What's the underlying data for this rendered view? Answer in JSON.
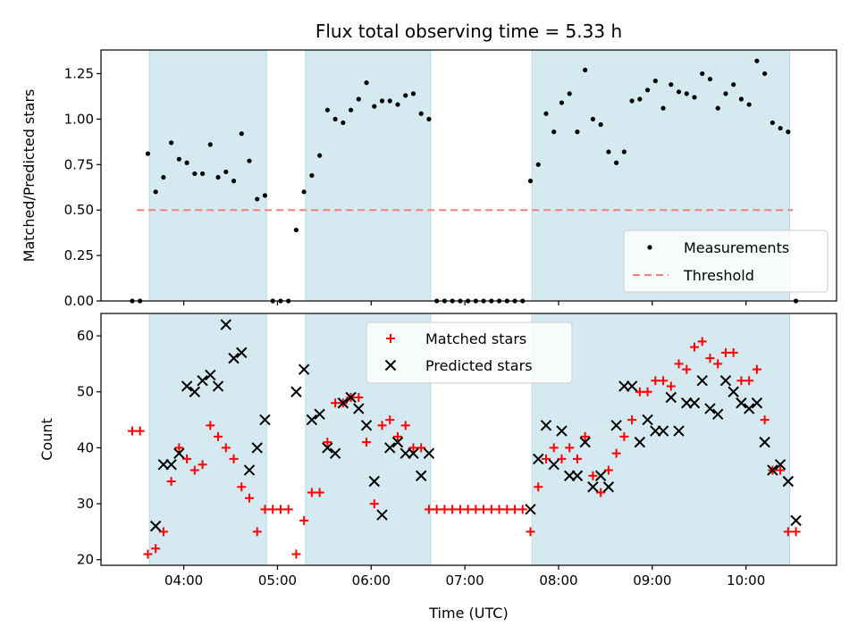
{
  "chart_data": [
    {
      "type": "scatter",
      "title": "Flux total observing time = 5.33 h",
      "ylabel": "Matched/Predicted stars",
      "xlabel": "",
      "ylim": [
        0,
        1.38
      ],
      "yticks": [
        "0.00",
        "0.25",
        "0.50",
        "0.75",
        "1.00",
        "1.25"
      ],
      "threshold": {
        "name": "Threshold",
        "value": 0.5,
        "x_range": [
          "03:30",
          "10:30"
        ],
        "color": "#f08080"
      },
      "shaded_intervals": [
        [
          "03:38",
          "04:53"
        ],
        [
          "05:18",
          "06:38"
        ],
        [
          "07:43",
          "10:28"
        ]
      ],
      "legend": {
        "placement": "lower-right",
        "entries": [
          "Measurements",
          "Threshold"
        ]
      },
      "series": [
        {
          "name": "Measurements",
          "color": "#000000",
          "marker": "dot",
          "x": [
            "03:27",
            "03:32",
            "03:37",
            "03:42",
            "03:47",
            "03:52",
            "03:57",
            "04:02",
            "04:07",
            "04:12",
            "04:17",
            "04:22",
            "04:27",
            "04:32",
            "04:37",
            "04:42",
            "04:47",
            "04:52",
            "04:57",
            "05:02",
            "05:07",
            "05:12",
            "05:17",
            "05:22",
            "05:27",
            "05:32",
            "05:37",
            "05:42",
            "05:47",
            "05:52",
            "05:57",
            "06:02",
            "06:07",
            "06:12",
            "06:17",
            "06:22",
            "06:27",
            "06:32",
            "06:37",
            "06:42",
            "06:47",
            "06:52",
            "06:57",
            "07:02",
            "07:07",
            "07:12",
            "07:17",
            "07:22",
            "07:27",
            "07:32",
            "07:37",
            "07:42",
            "07:47",
            "07:52",
            "07:57",
            "08:02",
            "08:07",
            "08:12",
            "08:17",
            "08:22",
            "08:27",
            "08:32",
            "08:37",
            "08:42",
            "08:47",
            "08:52",
            "08:57",
            "09:02",
            "09:07",
            "09:12",
            "09:17",
            "09:22",
            "09:27",
            "09:32",
            "09:37",
            "09:42",
            "09:47",
            "09:52",
            "09:57",
            "10:02",
            "10:07",
            "10:12",
            "10:17",
            "10:22",
            "10:27",
            "10:32"
          ],
          "y": [
            0,
            0,
            0.81,
            0.6,
            0.68,
            0.87,
            0.78,
            0.76,
            0.7,
            0.7,
            0.86,
            0.68,
            0.71,
            0.66,
            0.92,
            0.77,
            0.56,
            0.58,
            0,
            0,
            0,
            0.39,
            0.6,
            0.69,
            0.8,
            1.05,
            1.0,
            0.98,
            1.05,
            1.11,
            1.2,
            1.07,
            1.1,
            1.1,
            1.08,
            1.13,
            1.14,
            1.03,
            1.0,
            0,
            0,
            0,
            0,
            0,
            0,
            0,
            0,
            0,
            0,
            0,
            0,
            0.66,
            0.75,
            1.03,
            0.93,
            1.09,
            1.14,
            0.93,
            1.27,
            1.0,
            0.97,
            0.82,
            0.76,
            0.82,
            1.1,
            1.11,
            1.16,
            1.21,
            1.06,
            1.19,
            1.15,
            1.14,
            1.12,
            1.25,
            1.22,
            1.06,
            1.14,
            1.19,
            1.11,
            1.08,
            1.32,
            1.25,
            0.98,
            0.95,
            0.93,
            0
          ]
        }
      ]
    },
    {
      "type": "scatter",
      "title": "",
      "xlabel": "Time (UTC)",
      "ylabel": "Count",
      "ylim": [
        19,
        64
      ],
      "yticks": [
        "20",
        "30",
        "40",
        "50",
        "60"
      ],
      "xticks": [
        "04:00",
        "05:00",
        "06:00",
        "07:00",
        "08:00",
        "09:00",
        "10:00"
      ],
      "xlim": [
        "03:07",
        "10:58"
      ],
      "shaded_intervals": [
        [
          "03:38",
          "04:53"
        ],
        [
          "05:18",
          "06:38"
        ],
        [
          "07:43",
          "10:28"
        ]
      ],
      "legend": {
        "placement": "top-center",
        "entries": [
          "Matched stars",
          "Predicted stars"
        ]
      },
      "series": [
        {
          "name": "Matched stars",
          "color": "#ff0000",
          "marker": "plus",
          "x": [
            "03:27",
            "03:32",
            "03:37",
            "03:42",
            "03:47",
            "03:52",
            "03:57",
            "04:02",
            "04:07",
            "04:12",
            "04:17",
            "04:22",
            "04:27",
            "04:32",
            "04:37",
            "04:42",
            "04:47",
            "04:52",
            "04:57",
            "05:02",
            "05:07",
            "05:12",
            "05:17",
            "05:22",
            "05:27",
            "05:32",
            "05:37",
            "05:42",
            "05:47",
            "05:52",
            "05:57",
            "06:02",
            "06:07",
            "06:12",
            "06:17",
            "06:22",
            "06:27",
            "06:32",
            "06:37",
            "06:42",
            "06:47",
            "06:52",
            "06:57",
            "07:02",
            "07:07",
            "07:12",
            "07:17",
            "07:22",
            "07:27",
            "07:32",
            "07:37",
            "07:42",
            "07:47",
            "07:52",
            "07:57",
            "08:02",
            "08:07",
            "08:12",
            "08:17",
            "08:22",
            "08:27",
            "08:32",
            "08:37",
            "08:42",
            "08:47",
            "08:52",
            "08:57",
            "09:02",
            "09:07",
            "09:12",
            "09:17",
            "09:22",
            "09:27",
            "09:32",
            "09:37",
            "09:42",
            "09:47",
            "09:52",
            "09:57",
            "10:02",
            "10:07",
            "10:12",
            "10:17",
            "10:22",
            "10:27",
            "10:32"
          ],
          "y": [
            43,
            43,
            21,
            22,
            25,
            34,
            40,
            38,
            36,
            37,
            44,
            42,
            40,
            38,
            33,
            31,
            25,
            29,
            29,
            29,
            29,
            21,
            27,
            32,
            32,
            41,
            48,
            48,
            49,
            49,
            41,
            30,
            44,
            45,
            42,
            44,
            40,
            40,
            29,
            29,
            29,
            29,
            29,
            29,
            29,
            29,
            29,
            29,
            29,
            29,
            29,
            25,
            33,
            38,
            40,
            38,
            40,
            38,
            42,
            35,
            32,
            36,
            39,
            42,
            45,
            50,
            50,
            52,
            52,
            51,
            55,
            54,
            58,
            59,
            56,
            55,
            57,
            57,
            52,
            52,
            54,
            45,
            36,
            36,
            25,
            25
          ]
        },
        {
          "name": "Predicted stars",
          "color": "#000000",
          "marker": "x",
          "x": [
            "03:42",
            "03:47",
            "03:52",
            "03:57",
            "04:02",
            "04:07",
            "04:12",
            "04:17",
            "04:22",
            "04:27",
            "04:32",
            "04:37",
            "04:42",
            "04:47",
            "04:52",
            "05:12",
            "05:17",
            "05:22",
            "05:27",
            "05:32",
            "05:37",
            "05:42",
            "05:47",
            "05:52",
            "05:57",
            "06:02",
            "06:07",
            "06:12",
            "06:17",
            "06:22",
            "06:27",
            "06:32",
            "06:37",
            "07:42",
            "07:47",
            "07:52",
            "07:57",
            "08:02",
            "08:07",
            "08:12",
            "08:17",
            "08:22",
            "08:27",
            "08:32",
            "08:37",
            "08:42",
            "08:47",
            "08:52",
            "08:57",
            "09:02",
            "09:07",
            "09:12",
            "09:17",
            "09:22",
            "09:27",
            "09:32",
            "09:37",
            "09:42",
            "09:47",
            "09:52",
            "09:57",
            "10:02",
            "10:07",
            "10:12",
            "10:17",
            "10:22",
            "10:27",
            "10:32"
          ],
          "y": [
            26,
            37,
            37,
            39,
            51,
            50,
            52,
            53,
            51,
            62,
            56,
            57,
            36,
            40,
            45,
            50,
            54,
            45,
            46,
            40,
            39,
            48,
            49,
            47,
            44,
            34,
            28,
            40,
            41,
            39,
            39,
            35,
            39,
            29,
            38,
            44,
            37,
            43,
            35,
            35,
            41,
            33,
            35,
            33,
            44,
            51,
            51,
            41,
            45,
            43,
            43,
            49,
            43,
            48,
            48,
            52,
            47,
            46,
            52,
            50,
            48,
            47,
            48,
            41,
            36,
            37,
            34,
            27
          ]
        }
      ]
    }
  ]
}
